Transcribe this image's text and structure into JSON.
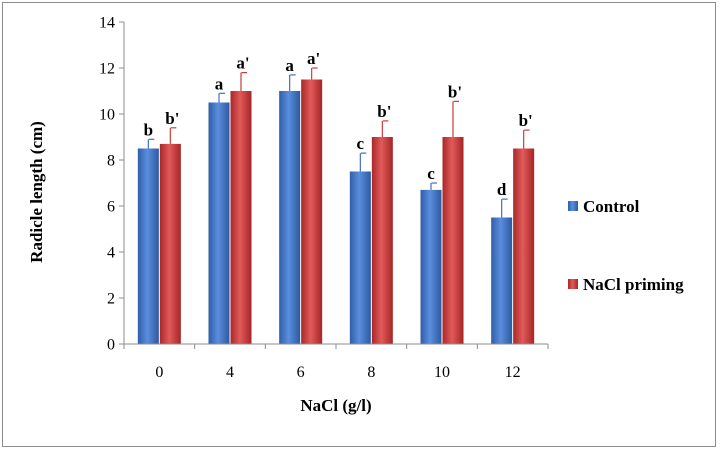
{
  "chart_data": {
    "type": "bar",
    "title": "",
    "xlabel": "NaCl (g/l)",
    "ylabel": "Radicle length (cm)",
    "categories": [
      "0",
      "4",
      "6",
      "8",
      "10",
      "12"
    ],
    "ylim": [
      0,
      14
    ],
    "yticks": [
      "0",
      "2",
      "4",
      "6",
      "8",
      "10",
      "12",
      "14"
    ],
    "grid": false,
    "legend_position": "right",
    "series": [
      {
        "name": "Control",
        "color": "#3f6fc4",
        "values": [
          8.5,
          10.5,
          11.0,
          7.5,
          6.7,
          5.5
        ],
        "errors": [
          0.4,
          0.4,
          0.7,
          0.8,
          0.3,
          0.8
        ],
        "labels": [
          "b",
          "a",
          "a",
          "c",
          "c",
          "d"
        ]
      },
      {
        "name": "NaCl priming",
        "color": "#cd3b3b",
        "values": [
          8.7,
          11.0,
          11.5,
          9.0,
          9.0,
          8.5
        ],
        "errors": [
          0.7,
          0.8,
          0.5,
          0.7,
          1.55,
          0.8
        ],
        "labels": [
          "b'",
          "a'",
          "a'",
          "b'",
          "b'",
          "b'"
        ]
      }
    ]
  }
}
